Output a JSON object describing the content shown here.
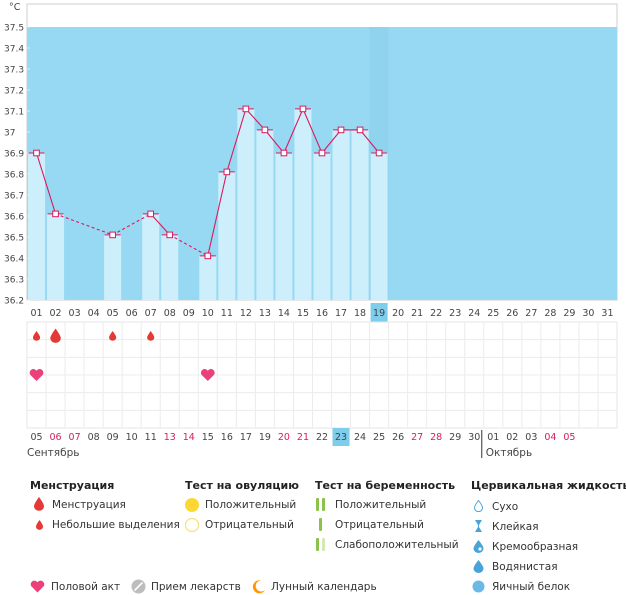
{
  "chart_data": {
    "type": "line",
    "y_unit": "°C",
    "ylim": [
      36.2,
      37.5
    ],
    "y_ticks": [
      "36.2",
      "36.3",
      "36.4",
      "36.5",
      "36.6",
      "36.7",
      "36.8",
      "36.9",
      "37",
      "37.1",
      "37.2",
      "37.3",
      "37.4",
      "37.5"
    ],
    "x_days": [
      "01",
      "02",
      "03",
      "04",
      "05",
      "06",
      "07",
      "08",
      "09",
      "10",
      "11",
      "12",
      "13",
      "14",
      "15",
      "16",
      "17",
      "18",
      "19",
      "20",
      "21",
      "22",
      "23",
      "24",
      "25",
      "26",
      "27",
      "28",
      "29",
      "30",
      "31"
    ],
    "current_day": "19",
    "series": [
      {
        "points": [
          {
            "x": "01",
            "y": 36.9
          },
          {
            "x": "02",
            "y": 36.61
          },
          {
            "x": "05",
            "y": 36.51
          },
          {
            "x": "07",
            "y": 36.61
          },
          {
            "x": "08",
            "y": 36.51
          },
          {
            "x": "10",
            "y": 36.41
          },
          {
            "x": "11",
            "y": 36.81
          },
          {
            "x": "12",
            "y": 37.11
          },
          {
            "x": "13",
            "y": 37.01
          },
          {
            "x": "14",
            "y": 36.9
          },
          {
            "x": "15",
            "y": 37.11
          },
          {
            "x": "16",
            "y": 36.9
          },
          {
            "x": "17",
            "y": 37.01
          },
          {
            "x": "18",
            "y": 37.01
          },
          {
            "x": "19",
            "y": 36.9
          }
        ]
      }
    ],
    "menstruation_large": [
      "02"
    ],
    "menstruation_small": [
      "01",
      "05",
      "07"
    ],
    "intercourse": [
      "01",
      "10"
    ],
    "dates": [
      "05",
      "06",
      "07",
      "08",
      "09",
      "10",
      "11",
      "13",
      "14",
      "15",
      "16",
      "17",
      "19",
      "20",
      "21",
      "22",
      "23",
      "24",
      "25",
      "26",
      "27",
      "28",
      "29",
      "30",
      "01",
      "02",
      "03",
      "04",
      "05"
    ],
    "dates_weekend": [
      "06",
      "07",
      "13",
      "14",
      "20",
      "21",
      "27",
      "28",
      "04",
      "05"
    ],
    "today_date": "23",
    "month_left": "Сентябрь",
    "month_right": "Октябрь"
  },
  "colors": {
    "plot_bg": "#97d9f2",
    "bar": "#cdeffc",
    "line": "#d81b60",
    "highlight": "#7fcdec",
    "drop": "#e53935",
    "heart": "#ec407a",
    "weekend": "#d81b60"
  },
  "legend": {
    "menstruation": {
      "title": "Менструация",
      "items": [
        "Менструация",
        "Небольшие выделения"
      ]
    },
    "ovulation": {
      "title": "Тест на овуляцию",
      "items": [
        "Положительный",
        "Отрицательный"
      ]
    },
    "pregnancy": {
      "title": "Тест на беременность",
      "items": [
        "Положительный",
        "Отрицательный",
        "Слабоположительный"
      ]
    },
    "cervical": {
      "title": "Цервикальная жидкость",
      "items": [
        "Сухо",
        "Клейкая",
        "Кремообразная",
        "Водянистая",
        "Яичный белок"
      ]
    },
    "bottom": [
      "Половой акт",
      "Прием лекарств",
      "Лунный календарь"
    ]
  }
}
